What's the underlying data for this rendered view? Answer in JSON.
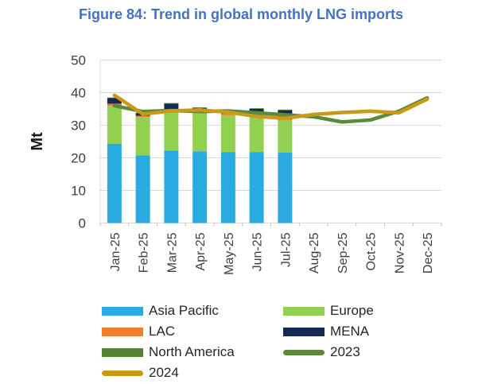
{
  "title": "Figure 84: Trend in global monthly LNG imports",
  "colors": {
    "title": "#4472C4",
    "asia_pacific": "#29ABE2",
    "europe": "#92D050",
    "lac": "#ED7D31",
    "mena": "#132A52",
    "north_america": "#548235",
    "line_2023": "#5B8A3B",
    "line_2024": "#C99A18",
    "gridline": "#D9D9D9",
    "tick": "#BFBFBF",
    "axis_text": "#404040"
  },
  "chart_data": {
    "type": "bar",
    "subtype": "stacked-bars-with-line-overlay",
    "title": "Figure 84: Trend in global monthly LNG imports",
    "xlabel": "",
    "ylabel": "Mt",
    "ylim": [
      0,
      50
    ],
    "yticks": [
      0,
      10,
      20,
      30,
      40,
      50
    ],
    "grid": true,
    "legend_position": "bottom",
    "categories": [
      "Jan-25",
      "Feb-25",
      "Mar-25",
      "Apr-25",
      "May-25",
      "Jun-25",
      "Jul-25",
      "Aug-25",
      "Sep-25",
      "Oct-25",
      "Nov-25",
      "Dec-25"
    ],
    "bar_series": [
      {
        "name": "Asia Pacific",
        "color_key": "asia_pacific",
        "values": [
          24.3,
          20.8,
          22.2,
          22.0,
          21.8,
          21.8,
          21.6,
          null,
          null,
          null,
          null,
          null
        ]
      },
      {
        "name": "Europe",
        "color_key": "europe",
        "values": [
          11.6,
          11.7,
          11.9,
          11.9,
          11.3,
          11.0,
          9.9,
          null,
          null,
          null,
          null,
          null
        ]
      },
      {
        "name": "LAC",
        "color_key": "lac",
        "values": [
          0.7,
          0.4,
          0.5,
          0.4,
          0.4,
          0.4,
          0.8,
          null,
          null,
          null,
          null,
          null
        ]
      },
      {
        "name": "MENA",
        "color_key": "mena",
        "values": [
          1.7,
          0.8,
          2.0,
          1.0,
          1.0,
          1.8,
          2.3,
          null,
          null,
          null,
          null,
          null
        ]
      },
      {
        "name": "North America",
        "color_key": "north_america",
        "values": [
          0.2,
          0.2,
          0.2,
          0.2,
          0.2,
          0.2,
          0.2,
          null,
          null,
          null,
          null,
          null
        ]
      }
    ],
    "line_series": [
      {
        "name": "2023",
        "color_key": "line_2023",
        "values": [
          36.0,
          34.2,
          34.5,
          34.2,
          34.4,
          33.8,
          33.2,
          32.6,
          31.0,
          31.6,
          34.3,
          38.4
        ]
      },
      {
        "name": "2024",
        "color_key": "line_2024",
        "values": [
          39.2,
          33.4,
          34.4,
          34.7,
          34.0,
          32.7,
          32.1,
          33.3,
          33.9,
          34.3,
          33.8,
          38.0
        ]
      }
    ]
  },
  "legend": {
    "items": [
      {
        "label": "Asia Pacific",
        "swatch": "bar",
        "color_key": "asia_pacific"
      },
      {
        "label": "Europe",
        "swatch": "bar",
        "color_key": "europe"
      },
      {
        "label": "LAC",
        "swatch": "bar",
        "color_key": "lac"
      },
      {
        "label": "MENA",
        "swatch": "bar",
        "color_key": "mena"
      },
      {
        "label": "North America",
        "swatch": "bar",
        "color_key": "north_america"
      },
      {
        "label": "2023",
        "swatch": "line",
        "color_key": "line_2023"
      },
      {
        "label": "2024",
        "swatch": "line",
        "color_key": "line_2024"
      }
    ]
  }
}
